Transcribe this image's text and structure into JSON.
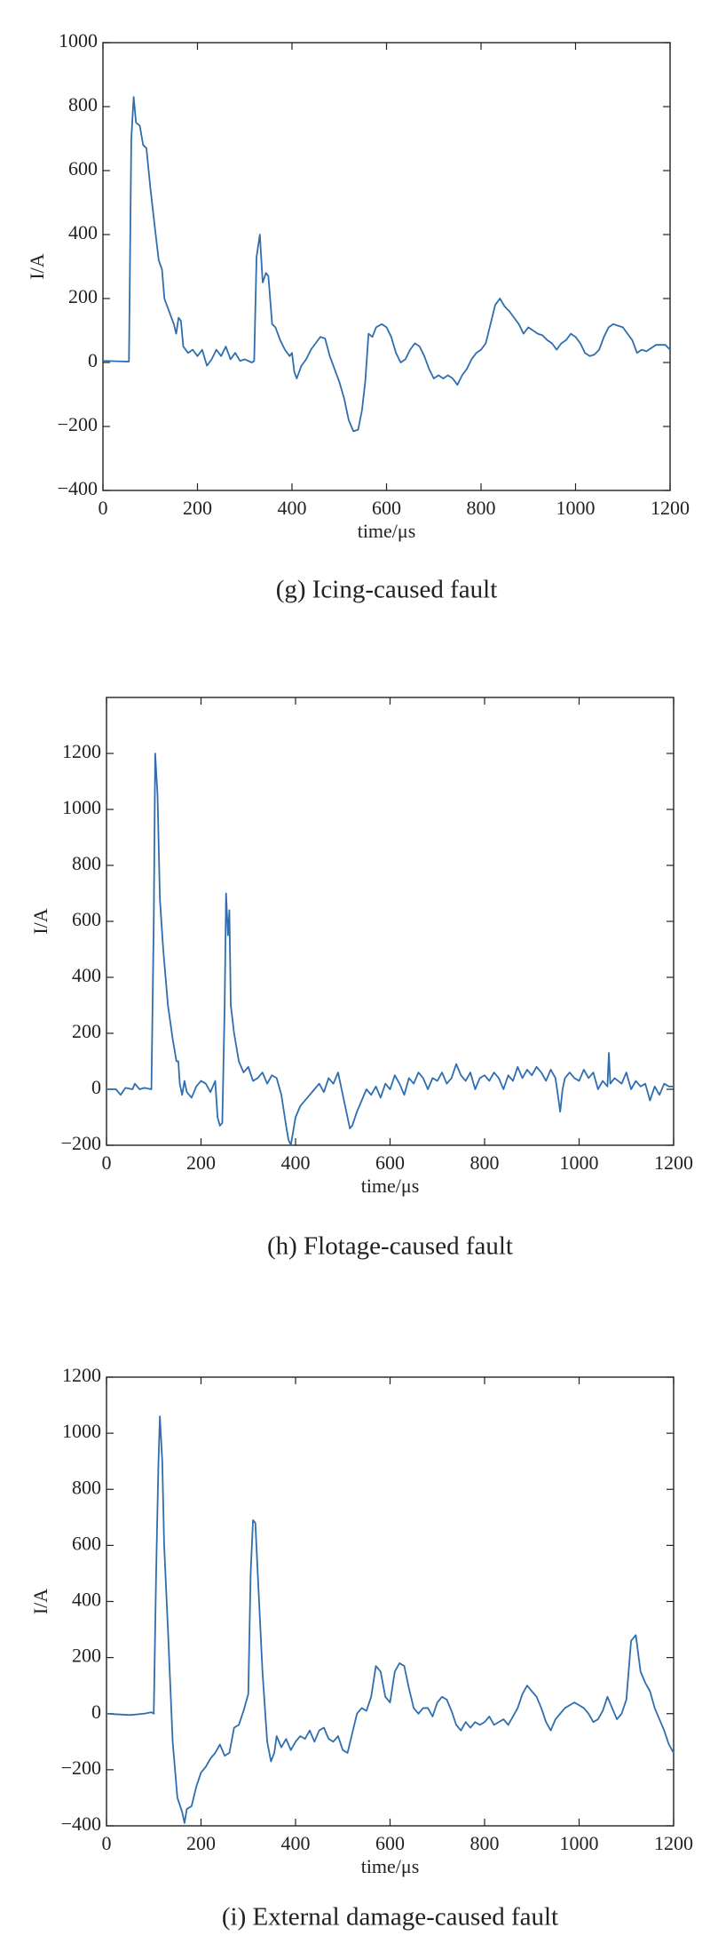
{
  "chart_data": [
    {
      "type": "line",
      "title": "(g) Icing-caused fault",
      "xlabel": "time/μs",
      "ylabel": "I/A",
      "color": "#2e6eaf",
      "xlim": [
        0,
        1200
      ],
      "xticks": [
        0,
        200,
        400,
        600,
        800,
        1000,
        1200
      ],
      "ylim": [
        -400,
        1000
      ],
      "yticks": [
        {
          "value": -400,
          "label": "−400"
        },
        {
          "value": -200,
          "label": "−200"
        },
        0,
        200,
        400,
        600,
        800,
        1000
      ],
      "x": [
        0,
        50,
        55,
        60,
        65,
        70,
        78,
        85,
        92,
        100,
        110,
        118,
        125,
        130,
        140,
        150,
        155,
        160,
        165,
        170,
        180,
        190,
        200,
        210,
        220,
        230,
        240,
        250,
        260,
        270,
        280,
        290,
        300,
        315,
        320,
        325,
        332,
        338,
        345,
        350,
        358,
        365,
        375,
        385,
        395,
        400,
        405,
        410,
        420,
        430,
        440,
        450,
        460,
        470,
        480,
        490,
        500,
        510,
        520,
        530,
        540,
        548,
        555,
        562,
        570,
        578,
        590,
        600,
        610,
        620,
        630,
        640,
        650,
        660,
        670,
        680,
        690,
        700,
        710,
        720,
        730,
        740,
        750,
        760,
        770,
        780,
        790,
        800,
        810,
        820,
        830,
        840,
        850,
        860,
        870,
        880,
        890,
        900,
        910,
        920,
        930,
        940,
        950,
        960,
        970,
        980,
        990,
        1000,
        1010,
        1020,
        1030,
        1040,
        1050,
        1060,
        1070,
        1080,
        1090,
        1100,
        1110,
        1120,
        1130,
        1140,
        1150,
        1160,
        1170,
        1180,
        1190,
        1200
      ],
      "values": [
        5,
        3,
        3,
        700,
        830,
        750,
        740,
        680,
        670,
        550,
        420,
        320,
        290,
        200,
        160,
        120,
        90,
        140,
        130,
        50,
        30,
        40,
        20,
        40,
        -10,
        10,
        40,
        20,
        50,
        10,
        30,
        5,
        10,
        0,
        5,
        330,
        400,
        250,
        280,
        270,
        120,
        110,
        70,
        40,
        20,
        30,
        -30,
        -50,
        -10,
        10,
        40,
        60,
        80,
        75,
        20,
        -20,
        -60,
        -110,
        -180,
        -215,
        -210,
        -150,
        -60,
        90,
        80,
        110,
        120,
        110,
        80,
        30,
        0,
        10,
        40,
        60,
        50,
        20,
        -20,
        -50,
        -40,
        -50,
        -40,
        -50,
        -70,
        -40,
        -20,
        10,
        30,
        40,
        60,
        120,
        180,
        200,
        175,
        160,
        140,
        120,
        90,
        110,
        100,
        90,
        85,
        70,
        60,
        40,
        60,
        70,
        90,
        80,
        60,
        30,
        20,
        25,
        40,
        80,
        110,
        120,
        115,
        110,
        90,
        70,
        30,
        40,
        35,
        45,
        55,
        55,
        55,
        40
      ]
    },
    {
      "type": "line",
      "title": "(h) Flotage-caused fault",
      "xlabel": "time/μs",
      "ylabel": "I/A",
      "color": "#2e6eaf",
      "xlim": [
        0,
        1200
      ],
      "xticks": [
        0,
        200,
        400,
        600,
        800,
        1000,
        1200
      ],
      "ylim": [
        -200,
        1400
      ],
      "yticks": [
        {
          "value": -200,
          "label": "−200"
        },
        0,
        200,
        400,
        600,
        800,
        1000,
        1200
      ],
      "x": [
        0,
        20,
        30,
        40,
        55,
        60,
        70,
        80,
        95,
        100,
        103,
        108,
        113,
        120,
        130,
        140,
        148,
        152,
        155,
        160,
        165,
        170,
        180,
        190,
        200,
        210,
        220,
        230,
        235,
        240,
        245,
        250,
        253,
        257,
        260,
        263,
        270,
        280,
        290,
        300,
        310,
        320,
        330,
        340,
        350,
        360,
        370,
        380,
        385,
        390,
        395,
        400,
        410,
        420,
        430,
        440,
        450,
        460,
        470,
        480,
        490,
        500,
        510,
        515,
        520,
        530,
        540,
        550,
        560,
        570,
        580,
        590,
        600,
        610,
        620,
        630,
        640,
        650,
        660,
        670,
        680,
        690,
        700,
        710,
        720,
        730,
        740,
        750,
        760,
        770,
        780,
        790,
        800,
        810,
        820,
        830,
        840,
        850,
        860,
        870,
        880,
        890,
        900,
        910,
        920,
        930,
        940,
        950,
        960,
        965,
        970,
        980,
        990,
        1000,
        1010,
        1020,
        1030,
        1040,
        1050,
        1060,
        1063,
        1066,
        1075,
        1090,
        1100,
        1110,
        1120,
        1130,
        1140,
        1150,
        1160,
        1170,
        1180,
        1190,
        1200
      ],
      "values": [
        0,
        0,
        -20,
        5,
        0,
        20,
        0,
        5,
        0,
        600,
        1200,
        1050,
        680,
        500,
        300,
        180,
        100,
        100,
        20,
        -20,
        30,
        -10,
        -30,
        10,
        30,
        20,
        -10,
        30,
        -100,
        -130,
        -120,
        300,
        700,
        550,
        640,
        300,
        200,
        100,
        60,
        80,
        30,
        40,
        60,
        20,
        50,
        40,
        -20,
        -130,
        -180,
        -200,
        -150,
        -100,
        -60,
        -40,
        -20,
        0,
        20,
        -10,
        40,
        20,
        60,
        -20,
        -100,
        -140,
        -130,
        -80,
        -40,
        0,
        -20,
        10,
        -30,
        20,
        0,
        50,
        20,
        -20,
        40,
        20,
        60,
        40,
        0,
        40,
        30,
        60,
        20,
        40,
        90,
        50,
        30,
        60,
        0,
        40,
        50,
        30,
        60,
        40,
        0,
        50,
        30,
        80,
        40,
        70,
        50,
        80,
        60,
        30,
        70,
        40,
        -80,
        0,
        40,
        60,
        40,
        30,
        70,
        40,
        60,
        0,
        30,
        10,
        130,
        20,
        40,
        20,
        60,
        0,
        30,
        10,
        20,
        -40,
        10,
        -20,
        20,
        10,
        10
      ]
    },
    {
      "type": "line",
      "title": "(i) External damage-caused fault",
      "xlabel": "time/μs",
      "ylabel": "I/A",
      "color": "#2e6eaf",
      "xlim": [
        0,
        1200
      ],
      "xticks": [
        0,
        200,
        400,
        600,
        800,
        1000,
        1200
      ],
      "ylim": [
        -400,
        1200
      ],
      "yticks": [
        {
          "value": -400,
          "label": "−400"
        },
        {
          "value": -200,
          "label": "−200"
        },
        0,
        200,
        400,
        600,
        800,
        1000,
        1200
      ],
      "x": [
        0,
        50,
        80,
        95,
        100,
        105,
        110,
        113,
        118,
        122,
        130,
        140,
        150,
        160,
        165,
        170,
        180,
        190,
        200,
        210,
        220,
        230,
        240,
        250,
        260,
        270,
        280,
        290,
        300,
        305,
        310,
        315,
        320,
        330,
        340,
        348,
        355,
        360,
        370,
        380,
        390,
        400,
        410,
        420,
        430,
        440,
        450,
        460,
        470,
        480,
        490,
        500,
        510,
        520,
        530,
        540,
        550,
        560,
        570,
        580,
        590,
        600,
        610,
        620,
        630,
        640,
        650,
        660,
        670,
        680,
        690,
        700,
        710,
        720,
        730,
        740,
        750,
        760,
        770,
        780,
        790,
        800,
        810,
        820,
        830,
        840,
        850,
        860,
        870,
        880,
        890,
        900,
        910,
        920,
        930,
        940,
        950,
        960,
        970,
        980,
        990,
        1000,
        1010,
        1020,
        1030,
        1040,
        1050,
        1060,
        1070,
        1080,
        1090,
        1100,
        1110,
        1120,
        1130,
        1140,
        1150,
        1160,
        1170,
        1180,
        1190,
        1200
      ],
      "values": [
        0,
        -5,
        0,
        5,
        0,
        500,
        900,
        1060,
        900,
        600,
        300,
        -100,
        -300,
        -350,
        -390,
        -340,
        -330,
        -260,
        -210,
        -190,
        -160,
        -140,
        -110,
        -150,
        -140,
        -50,
        -40,
        10,
        70,
        500,
        690,
        680,
        500,
        150,
        -100,
        -170,
        -140,
        -80,
        -120,
        -90,
        -130,
        -100,
        -80,
        -90,
        -60,
        -100,
        -60,
        -50,
        -90,
        -100,
        -80,
        -130,
        -140,
        -70,
        0,
        20,
        10,
        60,
        170,
        150,
        60,
        40,
        150,
        180,
        170,
        90,
        20,
        0,
        20,
        20,
        -10,
        40,
        60,
        50,
        10,
        -40,
        -60,
        -30,
        -50,
        -30,
        -40,
        -30,
        -10,
        -40,
        -30,
        -20,
        -40,
        -10,
        20,
        70,
        100,
        80,
        60,
        20,
        -30,
        -60,
        -20,
        0,
        20,
        30,
        40,
        30,
        20,
        0,
        -30,
        -20,
        10,
        60,
        20,
        -20,
        0,
        50,
        260,
        280,
        150,
        110,
        80,
        20,
        -20,
        -60,
        -110,
        -140
      ]
    }
  ]
}
